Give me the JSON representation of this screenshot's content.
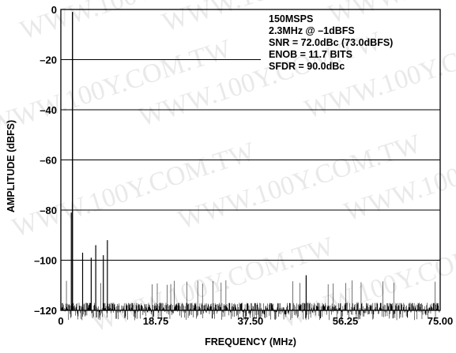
{
  "chart_data": {
    "type": "line",
    "title": "",
    "xlabel": "FREQUENCY (MHz)",
    "ylabel": "AMPLITUDE (dBFS)",
    "xlim": [
      0,
      75
    ],
    "ylim": [
      -120,
      0
    ],
    "x_ticks": [
      "0",
      "18.75",
      "37.50",
      "56.25",
      "75.00"
    ],
    "y_ticks": [
      "0",
      "–20",
      "–40",
      "–60",
      "–80",
      "–100",
      "–120"
    ],
    "grid": "horizontal",
    "annotation_lines": [
      "150MSPS",
      "2.3MHz @ –1dBFS",
      "SNR = 72.0dBc (73.0dBFS)",
      "ENOB = 11.7 BITS",
      "SFDR = 90.0dBc"
    ],
    "annotation_position": "top-right",
    "fundamental": {
      "x": 2.3,
      "y": -1
    },
    "spurs": [
      {
        "x": 2.3,
        "y": -81
      },
      {
        "x": 4.3,
        "y": -97
      },
      {
        "x": 6.0,
        "y": -99
      },
      {
        "x": 6.9,
        "y": -94
      },
      {
        "x": 8.4,
        "y": -98
      },
      {
        "x": 9.2,
        "y": -92
      },
      {
        "x": 48.5,
        "y": -106
      }
    ],
    "noise_floor": {
      "typical": -117,
      "peak": -108
    },
    "line_color": "#000000"
  },
  "watermark": "WWW.100Y.COM.TW"
}
